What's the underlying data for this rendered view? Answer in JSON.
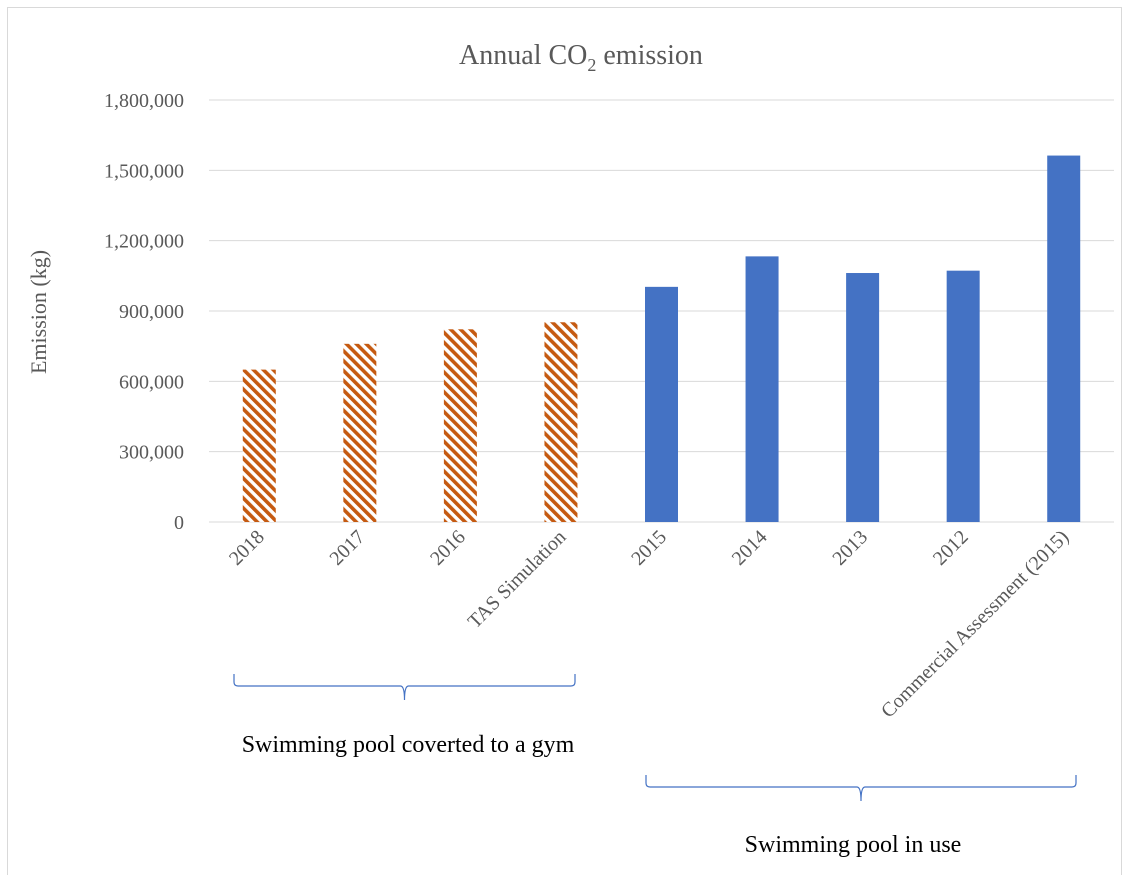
{
  "chart_data": {
    "type": "bar",
    "title_main": "Annual CO",
    "title_sub": "2",
    "title_rest": " emission",
    "ylabel": "Emission (kg)",
    "xlabel": "",
    "ylim": [
      0,
      1800000
    ],
    "yticks": [
      0,
      300000,
      600000,
      900000,
      1200000,
      1500000,
      1800000
    ],
    "ytick_labels": [
      "0",
      "300,000",
      "600,000",
      "900,000",
      "1,200,000",
      "1,500,000",
      "1,800,000"
    ],
    "grid": true,
    "categories": [
      "2018",
      "2017",
      "2016",
      "TAS Simulation",
      "2015",
      "2014",
      "2013",
      "2012",
      "Commercial Assessment (2015)"
    ],
    "values": [
      650000,
      760000,
      822000,
      852000,
      1003000,
      1133000,
      1062000,
      1072000,
      1563000
    ],
    "styles": [
      "hatched",
      "hatched",
      "hatched",
      "hatched",
      "solid",
      "solid",
      "solid",
      "solid",
      "solid"
    ],
    "colors": {
      "hatched_fg": "#c55a11",
      "hatched_bg": "#ffffff",
      "solid": "#4472c4",
      "grid": "#d9d9d9",
      "text": "#595959",
      "brace": "#4472c4"
    },
    "groups": [
      {
        "label": "Swimming pool coverted to a gym",
        "from_index": 0,
        "to_index": 3
      },
      {
        "label": "Swimming pool in use",
        "from_index": 4,
        "to_index": 8
      }
    ]
  }
}
